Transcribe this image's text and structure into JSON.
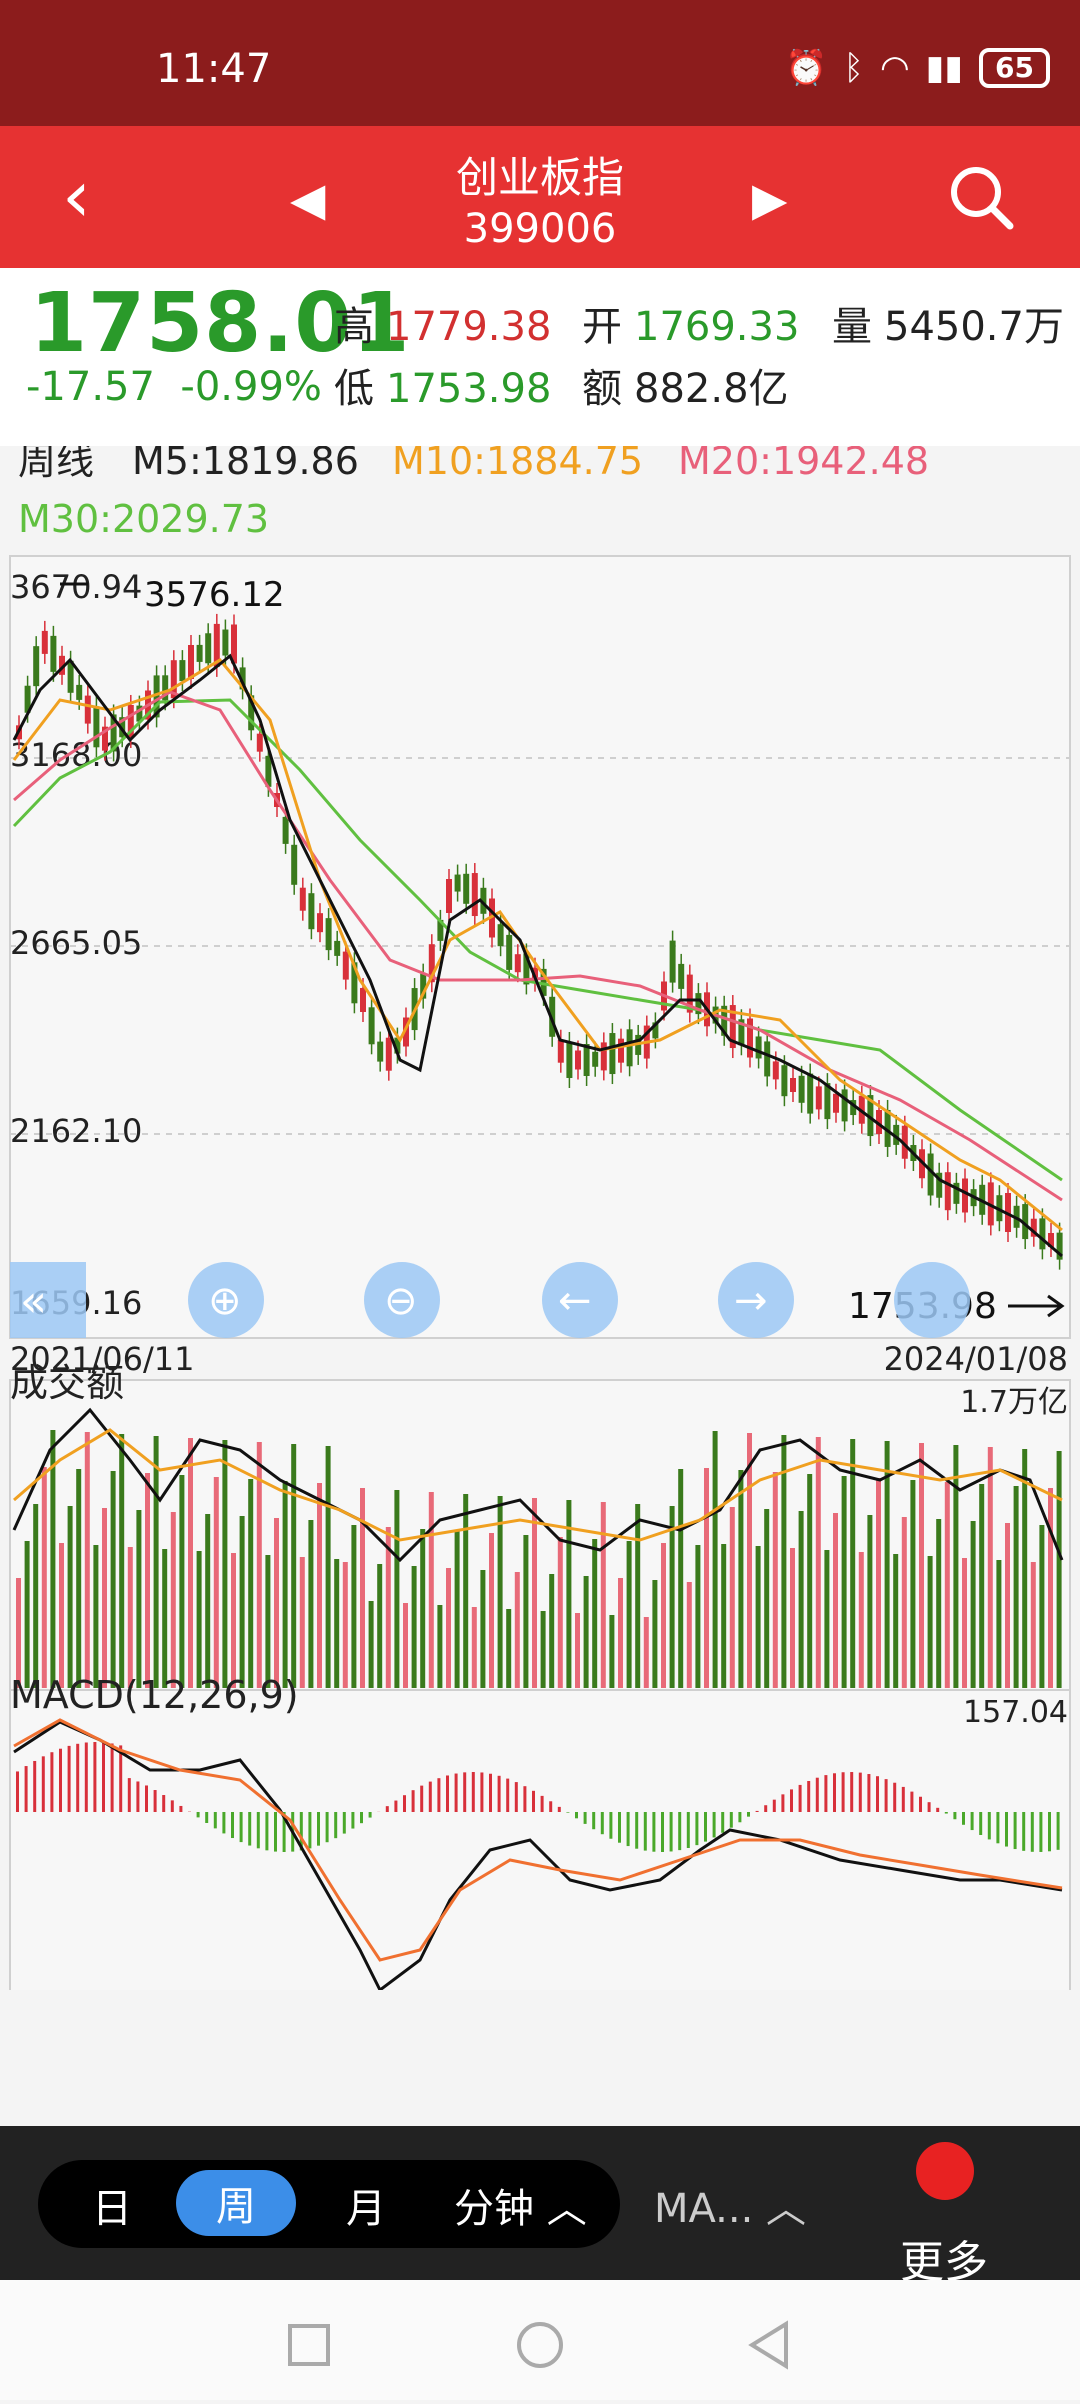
{
  "status": {
    "time": "11:47",
    "battery": "65"
  },
  "header": {
    "name": "创业板指",
    "code": "399006"
  },
  "quote": {
    "price": "1758.01",
    "change": "-17.57",
    "change_pct": "-0.99%",
    "high_label": "高",
    "high": "1779.38",
    "open_label": "开",
    "open": "1769.33",
    "volume_label": "量",
    "volume": "5450.7万",
    "low_label": "低",
    "low": "1753.98",
    "amount_label": "额",
    "amount": "882.8亿"
  },
  "chart": {
    "period_label": "周线",
    "ma5": "M5:1819.86",
    "ma10": "M10:1884.75",
    "ma20": "M20:1942.48",
    "ma30": "M30:2029.73",
    "y_ticks": [
      "3670.94",
      "3168.00",
      "2665.05",
      "2162.10",
      "1659.16"
    ],
    "max_label": "3576.12",
    "min_label": "1753.98",
    "date_start": "2021/06/11",
    "date_end": "2024/01/08",
    "volume_title": "成交额",
    "volume_max": "1.7万亿",
    "macd_title": "MACD(12,26,9)",
    "macd_max": "157.04",
    "colors": {
      "up": "#e86a78",
      "down": "#3a7a1c",
      "ma5": "#111111",
      "ma10": "#f0a020",
      "ma20": "#e8607a",
      "ma30": "#60c040",
      "dif": "#111111",
      "dea": "#f07030"
    }
  },
  "bottom": {
    "tab_day": "日",
    "tab_week": "周",
    "tab_month": "月",
    "tab_minute": "分钟 ︿",
    "tab_ma": "MA... ︿",
    "more": "更多"
  }
}
